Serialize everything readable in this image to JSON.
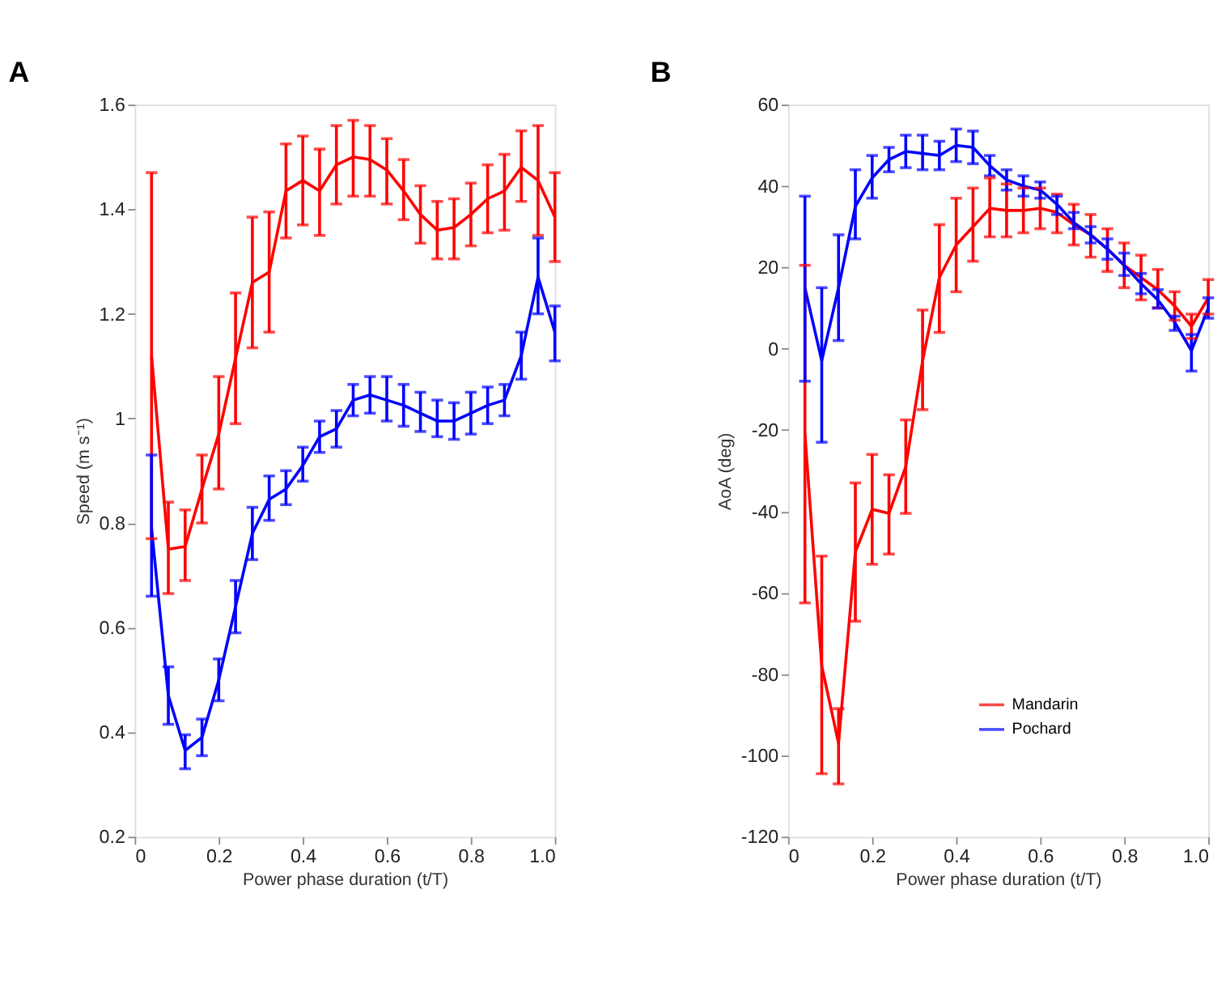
{
  "chart_data": [
    {
      "type": "line",
      "title": "A",
      "xlabel": "Power phase duration (t/T)",
      "ylabel": "Speed (m s⁻¹)",
      "x": [
        0.04,
        0.08,
        0.12,
        0.16,
        0.2,
        0.24,
        0.28,
        0.32,
        0.36,
        0.4,
        0.44,
        0.48,
        0.52,
        0.56,
        0.6,
        0.64,
        0.68,
        0.72,
        0.76,
        0.8,
        0.84,
        0.88,
        0.92,
        0.96,
        1.0
      ],
      "xlim": [
        0,
        1
      ],
      "xticks": [
        0,
        0.2,
        0.4,
        0.6,
        0.8,
        {
          "value": 1,
          "label": "1.0"
        }
      ],
      "ylim": [
        0.2,
        1.6
      ],
      "yticks": [
        0.2,
        0.4,
        0.6,
        0.8,
        1,
        1.2,
        1.4,
        1.6
      ],
      "grid": false,
      "legend": false,
      "marker": "none",
      "line_style": "solid",
      "series": [
        {
          "color": "#ff0000",
          "values": [
            1.12,
            0.75,
            0.755,
            0.865,
            0.97,
            1.115,
            1.26,
            1.28,
            1.435,
            1.455,
            1.435,
            1.485,
            1.5,
            1.495,
            1.475,
            1.435,
            1.39,
            1.36,
            1.365,
            1.39,
            1.42,
            1.435,
            1.48,
            1.455,
            1.385
          ],
          "errors": [
            [
              0.77,
              1.47
            ],
            [
              0.665,
              0.84
            ],
            [
              0.69,
              0.825
            ],
            [
              0.8,
              0.93
            ],
            [
              0.865,
              1.08
            ],
            [
              0.99,
              1.24
            ],
            [
              1.135,
              1.385
            ],
            [
              1.165,
              1.395
            ],
            [
              1.345,
              1.525
            ],
            [
              1.37,
              1.54
            ],
            [
              1.35,
              1.515
            ],
            [
              1.41,
              1.56
            ],
            [
              1.425,
              1.57
            ],
            [
              1.425,
              1.56
            ],
            [
              1.41,
              1.535
            ],
            [
              1.38,
              1.495
            ],
            [
              1.335,
              1.445
            ],
            [
              1.305,
              1.415
            ],
            [
              1.305,
              1.42
            ],
            [
              1.33,
              1.45
            ],
            [
              1.355,
              1.485
            ],
            [
              1.36,
              1.505
            ],
            [
              1.415,
              1.55
            ],
            [
              1.35,
              1.56
            ],
            [
              1.3,
              1.47
            ]
          ]
        },
        {
          "color": "#0000ff",
          "values": [
            0.79,
            0.47,
            0.365,
            0.39,
            0.5,
            0.64,
            0.78,
            0.845,
            0.865,
            0.91,
            0.965,
            0.98,
            1.035,
            1.045,
            1.035,
            1.025,
            1.01,
            0.995,
            0.995,
            1.01,
            1.025,
            1.035,
            1.12,
            1.27,
            1.165
          ],
          "errors": [
            [
              0.66,
              0.93
            ],
            [
              0.415,
              0.525
            ],
            [
              0.33,
              0.395
            ],
            [
              0.355,
              0.425
            ],
            [
              0.46,
              0.54
            ],
            [
              0.59,
              0.69
            ],
            [
              0.73,
              0.83
            ],
            [
              0.805,
              0.89
            ],
            [
              0.835,
              0.9
            ],
            [
              0.88,
              0.945
            ],
            [
              0.935,
              0.995
            ],
            [
              0.945,
              1.015
            ],
            [
              1.005,
              1.065
            ],
            [
              1.01,
              1.08
            ],
            [
              0.995,
              1.08
            ],
            [
              0.985,
              1.065
            ],
            [
              0.975,
              1.05
            ],
            [
              0.965,
              1.035
            ],
            [
              0.96,
              1.03
            ],
            [
              0.97,
              1.05
            ],
            [
              0.99,
              1.06
            ],
            [
              1.005,
              1.065
            ],
            [
              1.075,
              1.165
            ],
            [
              1.2,
              1.345
            ],
            [
              1.11,
              1.215
            ]
          ]
        }
      ]
    },
    {
      "type": "line",
      "title": "B",
      "xlabel": "Power phase duration (t/T)",
      "ylabel": "AoA (deg)",
      "x": [
        0.04,
        0.08,
        0.12,
        0.16,
        0.2,
        0.24,
        0.28,
        0.32,
        0.36,
        0.4,
        0.44,
        0.48,
        0.52,
        0.56,
        0.6,
        0.64,
        0.68,
        0.72,
        0.76,
        0.8,
        0.84,
        0.88,
        0.92,
        0.96,
        1.0
      ],
      "xlim": [
        0,
        1
      ],
      "xticks": [
        0,
        0.2,
        0.4,
        0.6,
        0.8,
        {
          "value": 1,
          "label": "1.0"
        }
      ],
      "ylim": [
        -120,
        60
      ],
      "yticks": [
        -120,
        -100,
        -80,
        -60,
        -40,
        -20,
        0,
        20,
        40,
        60
      ],
      "grid": false,
      "legend": "bottom",
      "marker": "none",
      "line_style": "solid",
      "series": [
        {
          "name": "Mandarin",
          "color": "#ff0000",
          "values": [
            -21,
            -78,
            -97,
            -50,
            -39.5,
            -40.5,
            -29,
            -3,
            17.5,
            25.5,
            30,
            34.5,
            34,
            34,
            34.5,
            33.5,
            30.5,
            28,
            24.5,
            20.5,
            17.5,
            14.5,
            10.5,
            5.5,
            12.5
          ],
          "errors": [
            [
              -62.5,
              20.5
            ],
            [
              -104.5,
              -51
            ],
            [
              -107,
              -88.5
            ],
            [
              -67,
              -33
            ],
            [
              -53,
              -26
            ],
            [
              -50.5,
              -31
            ],
            [
              -40.5,
              -17.5
            ],
            [
              -15,
              9.5
            ],
            [
              4,
              30.5
            ],
            [
              14,
              37
            ],
            [
              21.5,
              39.5
            ],
            [
              27.5,
              42
            ],
            [
              27.5,
              40.5
            ],
            [
              28.5,
              39.5
            ],
            [
              29.5,
              39.5
            ],
            [
              28.5,
              38
            ],
            [
              25.5,
              35.5
            ],
            [
              22.5,
              33
            ],
            [
              19,
              29.5
            ],
            [
              15,
              26
            ],
            [
              12,
              23
            ],
            [
              10,
              19.5
            ],
            [
              7,
              14
            ],
            [
              2.5,
              8.5
            ],
            [
              8.5,
              17
            ]
          ]
        },
        {
          "name": "Pochard",
          "color": "#0000ff",
          "values": [
            15,
            -3,
            15,
            35,
            42,
            46.5,
            48.5,
            48,
            47.5,
            50,
            49.5,
            45,
            41.5,
            40,
            39,
            35.5,
            31,
            28,
            24.5,
            20.5,
            16,
            12,
            6.5,
            -0.5,
            10
          ],
          "errors": [
            [
              -8,
              37.5
            ],
            [
              -23,
              15
            ],
            [
              2,
              28
            ],
            [
              27,
              44
            ],
            [
              37,
              47.5
            ],
            [
              43.5,
              49.5
            ],
            [
              44.5,
              52.5
            ],
            [
              44,
              52.5
            ],
            [
              44,
              51
            ],
            [
              46,
              54
            ],
            [
              45.5,
              53.5
            ],
            [
              42.5,
              47.5
            ],
            [
              39,
              44
            ],
            [
              37.5,
              42.5
            ],
            [
              37,
              41
            ],
            [
              33,
              37.5
            ],
            [
              29.5,
              33.5
            ],
            [
              26,
              30
            ],
            [
              22,
              27
            ],
            [
              18,
              23.5
            ],
            [
              13.5,
              18.5
            ],
            [
              10,
              14.5
            ],
            [
              4.5,
              8
            ],
            [
              -5.5,
              3.5
            ],
            [
              7.5,
              12.5
            ]
          ]
        }
      ]
    }
  ]
}
